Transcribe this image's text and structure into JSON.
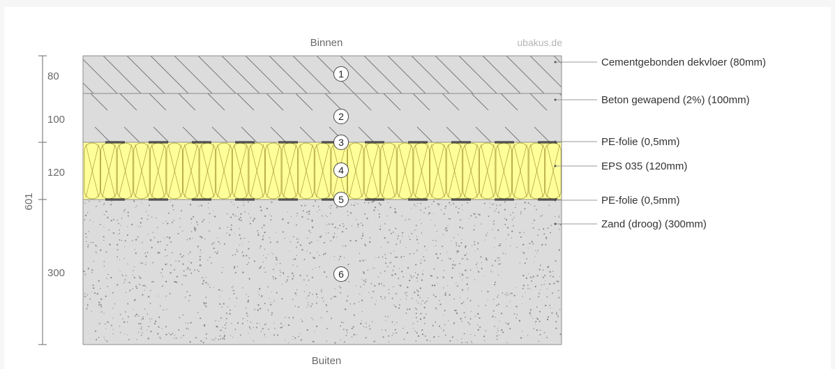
{
  "top_label": "Binnen",
  "bottom_label": "Buiten",
  "watermark": "ubakus.de",
  "total_thickness": "601",
  "layers": [
    {
      "number": "1",
      "thickness": "80",
      "label": "Cementgebonden dekvloer (80mm)",
      "material": "screed",
      "fill": "#dcdcdc"
    },
    {
      "number": "2",
      "thickness": "100",
      "label": "Beton gewapend (2%) (100mm)",
      "material": "concrete",
      "fill": "#dcdcdc"
    },
    {
      "number": "3",
      "thickness": "",
      "label": "PE-folie (0,5mm)",
      "material": "foil",
      "fill": "#1a1a1a"
    },
    {
      "number": "4",
      "thickness": "120",
      "label": "EPS 035 (120mm)",
      "material": "insulation",
      "fill": "#ffff99"
    },
    {
      "number": "5",
      "thickness": "",
      "label": "PE-folie (0,5mm)",
      "material": "foil",
      "fill": "#1a1a1a"
    },
    {
      "number": "6",
      "thickness": "300",
      "label": "Zand (droog) (300mm)",
      "material": "sand",
      "fill": "#dcdcdc"
    }
  ],
  "colors": {
    "outline": "#8c8c8c",
    "leader": "#9a9a9a",
    "text": "#333333",
    "muted_text": "#6a6a6a",
    "watermark": "#b4b4b4",
    "insulation": "#ffff99",
    "insulation_stroke": "#a89a3a",
    "hatch": "#6e6e6e",
    "sand_dots": "#8a8a8a"
  }
}
